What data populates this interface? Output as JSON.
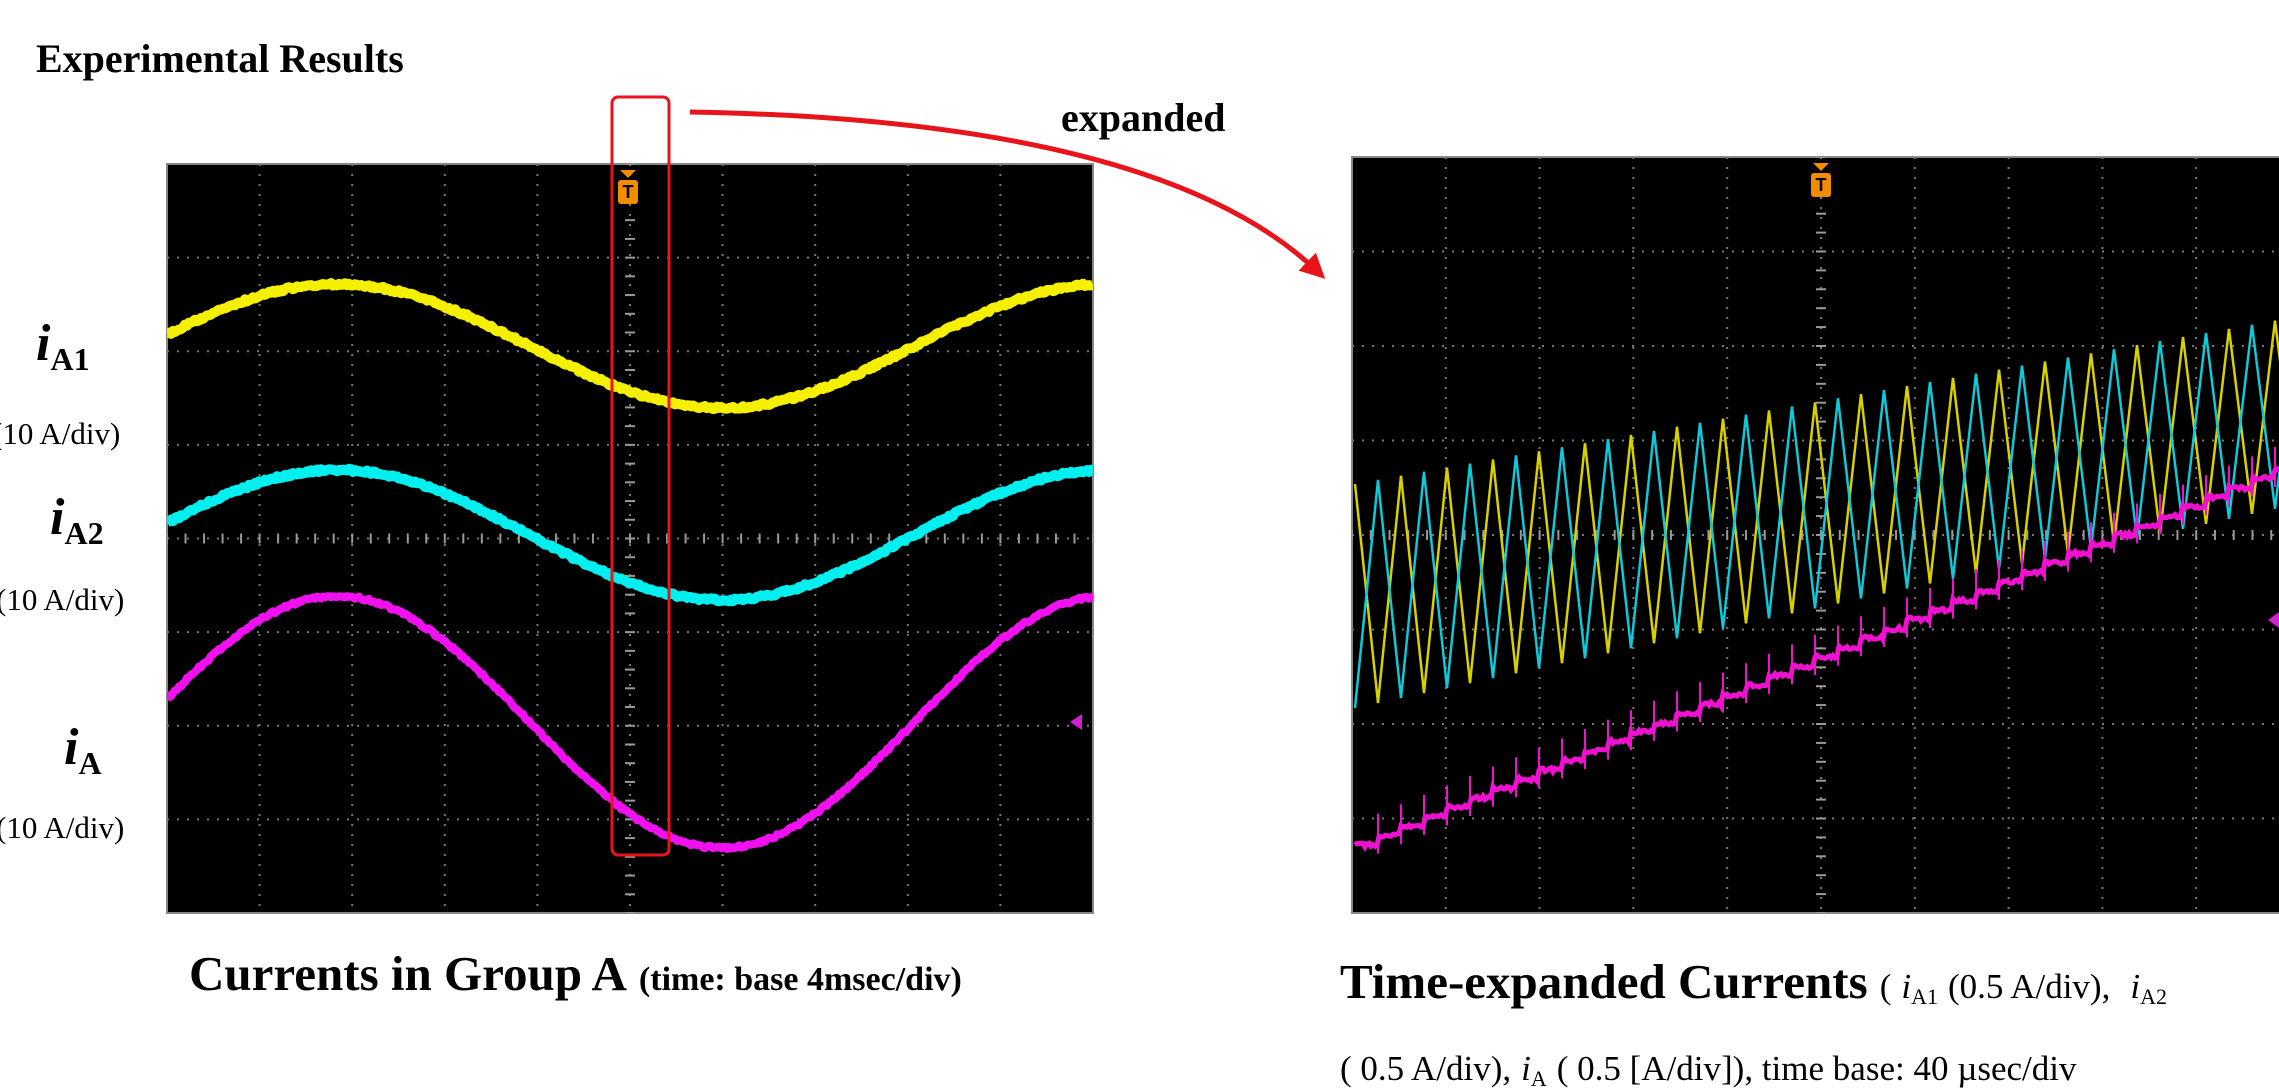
{
  "title": "Experimental Results",
  "callout": "expanded",
  "trigger_label": "T",
  "left_panel": {
    "signals": [
      {
        "symbol": "i",
        "subscript": "A1",
        "scale": "(10 A/div)"
      },
      {
        "symbol": "i",
        "subscript": "A2",
        "scale": "(10 A/div)"
      },
      {
        "symbol": "i",
        "subscript": "A",
        "scale": "(10 A/div)"
      }
    ],
    "caption": {
      "heading": "Currents in Group A",
      "detail": "(time: base 4msec/div)"
    }
  },
  "right_panel": {
    "caption": {
      "heading": "Time-expanded Currents",
      "line1": [
        "(",
        "i",
        "A1",
        "(0.5 A/div),",
        "i",
        "A2"
      ],
      "line2": [
        "( 0.5 A/div),",
        "i",
        "A",
        "( 0.5 [A/div]), time base: 40 µsec/div"
      ]
    }
  }
}
